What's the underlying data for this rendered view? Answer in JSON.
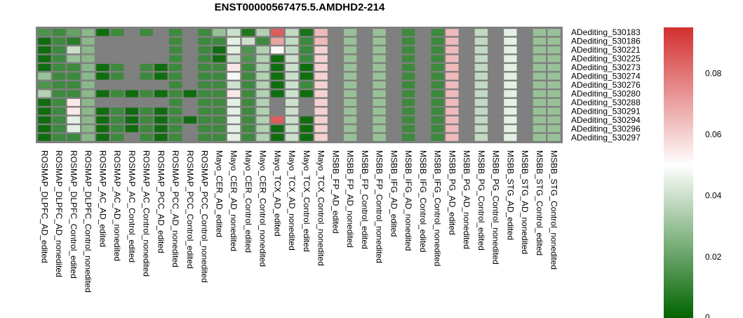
{
  "chart_data": {
    "type": "heatmap",
    "title": "ENST00000567475.5.AMDHD2-214",
    "columns": [
      "ROSMAP_DLPFC_AD_edited",
      "ROSMAP_DLPFC_AD_nonedited",
      "ROSMAP_DLPFC_Control_edited",
      "ROSMAP_DLPFC_Control_nonedited",
      "ROSMAP_AC_AD_edited",
      "ROSMAP_AC_AD_nonedited",
      "ROSMAP_AC_Control_edited",
      "ROSMAP_AC_Control_nonedited",
      "ROSMAP_PCC_AD_edited",
      "ROSMAP_PCC_AD_nonedited",
      "ROSMAP_PCC_Control_edited",
      "ROSMAP_PCC_Control_nonedited",
      "Mayo_CER_AD_edited",
      "Mayo_CER_AD_nonedited",
      "Mayo_CER_Control_edited",
      "Mayo_CER_Control_nonedited",
      "Mayo_TCX_AD_edited",
      "Mayo_TCX_AD_nonedited",
      "Mayo_TCX_Control_edited",
      "Mayo_TCX_Control_nonedited",
      "MSBB_FP_AD_edited",
      "MSBB_FP_AD_nonedited",
      "MSBB_FP_Control_edited",
      "MSBB_FP_Control_nonedited",
      "MSBB_IFG_AD_edited",
      "MSBB_IFG_AD_nonedited",
      "MSBB_IFG_Control_edited",
      "MSBB_IFG_Control_nonedited",
      "MSBB_PG_AD_edited",
      "MSBB_PG_AD_nonedited",
      "MSBB_PG_Control_edited",
      "MSBB_PG_Control_nonedited",
      "MSBB_STG_AD_edited",
      "MSBB_STG_AD_nonedited",
      "MSBB_STG_Control_edited",
      "MSBB_STG_Control_nonedited"
    ],
    "rows": [
      "ADediting_530183",
      "ADediting_530186",
      "ADediting_530221",
      "ADediting_530225",
      "ADediting_530273",
      "ADediting_530274",
      "ADediting_530276",
      "ADediting_530280",
      "ADediting_530288",
      "ADediting_530291",
      "ADediting_530294",
      "ADediting_530296",
      "ADediting_530297"
    ],
    "values": [
      [
        0.015,
        0.012,
        0.02,
        0.027,
        0.003,
        0.012,
        null,
        0.012,
        null,
        0.012,
        null,
        0.012,
        0.03,
        0.04,
        0.006,
        0.035,
        0.085,
        0.038,
        0.005,
        0.065,
        null,
        0.03,
        null,
        0.03,
        null,
        0.012,
        null,
        0.012,
        0.065,
        null,
        0.038,
        null,
        0.045,
        null,
        0.03,
        0.03
      ],
      [
        0.003,
        0.012,
        0.008,
        0.027,
        null,
        null,
        null,
        null,
        null,
        0.012,
        null,
        0.012,
        0.012,
        0.045,
        0.04,
        0.012,
        0.07,
        0.038,
        0.012,
        0.065,
        null,
        0.03,
        null,
        0.03,
        null,
        0.012,
        null,
        0.012,
        0.065,
        null,
        0.038,
        null,
        0.045,
        null,
        0.03,
        0.03
      ],
      [
        0.003,
        0.012,
        0.04,
        0.027,
        null,
        null,
        null,
        null,
        null,
        0.012,
        null,
        0.012,
        0.003,
        0.045,
        0.015,
        0.035,
        0.052,
        0.038,
        0.012,
        0.06,
        null,
        0.03,
        null,
        0.03,
        null,
        0.012,
        null,
        0.012,
        0.065,
        null,
        0.038,
        null,
        0.045,
        null,
        0.03,
        0.03
      ],
      [
        0.003,
        0.012,
        0.03,
        0.027,
        null,
        null,
        null,
        null,
        null,
        0.012,
        null,
        0.012,
        0.003,
        0.04,
        0.015,
        0.035,
        0.003,
        0.04,
        0.012,
        0.06,
        null,
        0.03,
        null,
        0.03,
        null,
        0.012,
        null,
        0.012,
        0.065,
        null,
        0.038,
        null,
        0.045,
        null,
        0.03,
        0.03
      ],
      [
        0.003,
        0.012,
        0.012,
        0.027,
        0.003,
        0.012,
        null,
        0.012,
        0.003,
        0.012,
        null,
        0.012,
        0.012,
        0.055,
        0.012,
        0.035,
        0.003,
        0.04,
        0.003,
        0.06,
        null,
        0.03,
        null,
        0.03,
        null,
        0.012,
        null,
        0.012,
        0.065,
        null,
        0.038,
        null,
        0.045,
        null,
        0.03,
        0.03
      ],
      [
        0.03,
        0.012,
        0.012,
        0.027,
        0.003,
        0.012,
        null,
        0.012,
        0.003,
        0.012,
        null,
        0.012,
        0.012,
        0.048,
        0.012,
        0.035,
        0.003,
        0.04,
        0.003,
        0.06,
        null,
        0.03,
        null,
        0.03,
        null,
        0.012,
        null,
        0.012,
        0.065,
        null,
        0.038,
        null,
        0.045,
        null,
        0.03,
        0.03
      ],
      [
        0.015,
        0.012,
        0.012,
        0.027,
        null,
        null,
        null,
        null,
        null,
        0.012,
        null,
        0.012,
        0.012,
        0.04,
        0.012,
        0.035,
        0.003,
        0.04,
        0.012,
        0.06,
        null,
        0.03,
        null,
        0.03,
        null,
        0.012,
        null,
        0.012,
        0.065,
        null,
        0.038,
        null,
        0.045,
        null,
        0.03,
        0.03
      ],
      [
        0.035,
        0.012,
        0.012,
        0.027,
        0.003,
        0.012,
        0.003,
        0.012,
        0.003,
        0.012,
        0.003,
        0.012,
        0.012,
        0.055,
        0.012,
        0.035,
        0.003,
        0.04,
        0.003,
        0.06,
        null,
        0.03,
        null,
        0.03,
        null,
        0.012,
        null,
        0.012,
        0.065,
        null,
        0.038,
        null,
        0.045,
        null,
        0.03,
        0.03
      ],
      [
        0.003,
        0.012,
        0.055,
        0.027,
        null,
        null,
        null,
        null,
        null,
        0.012,
        null,
        0.012,
        0.012,
        0.045,
        0.012,
        0.035,
        null,
        0.04,
        null,
        0.06,
        null,
        0.03,
        null,
        0.03,
        null,
        0.012,
        null,
        0.012,
        0.065,
        null,
        0.038,
        null,
        0.045,
        null,
        0.03,
        0.03
      ],
      [
        0.003,
        0.012,
        0.055,
        0.027,
        0.003,
        0.012,
        0.003,
        0.012,
        0.003,
        0.012,
        null,
        0.012,
        0.012,
        0.045,
        0.012,
        0.035,
        null,
        0.04,
        null,
        0.06,
        null,
        0.03,
        null,
        0.03,
        null,
        0.012,
        null,
        0.012,
        0.065,
        null,
        0.038,
        null,
        0.045,
        null,
        0.03,
        0.03
      ],
      [
        0.003,
        0.012,
        0.045,
        0.027,
        0.003,
        0.012,
        0.003,
        0.012,
        0.003,
        0.012,
        0.003,
        0.012,
        0.012,
        0.045,
        0.012,
        0.035,
        0.085,
        0.04,
        0.003,
        0.06,
        null,
        0.03,
        null,
        0.03,
        null,
        0.012,
        null,
        0.012,
        0.065,
        null,
        0.038,
        null,
        0.045,
        null,
        0.03,
        0.03
      ],
      [
        0.003,
        0.012,
        0.045,
        0.027,
        0.003,
        0.012,
        0.003,
        0.012,
        0.003,
        0.012,
        null,
        0.012,
        0.012,
        0.045,
        0.012,
        0.035,
        0.003,
        0.04,
        0.003,
        0.06,
        null,
        0.03,
        null,
        0.03,
        null,
        0.012,
        null,
        0.012,
        0.065,
        null,
        0.038,
        null,
        0.045,
        null,
        0.03,
        0.03
      ],
      [
        0.003,
        0.012,
        0.012,
        0.027,
        0.003,
        0.012,
        null,
        0.012,
        0.003,
        0.012,
        null,
        0.012,
        0.012,
        0.045,
        0.012,
        0.035,
        0.003,
        0.04,
        0.003,
        0.06,
        null,
        0.03,
        null,
        0.03,
        null,
        0.012,
        null,
        0.012,
        0.065,
        null,
        0.038,
        null,
        0.045,
        null,
        0.03,
        0.03
      ]
    ],
    "colorbar": {
      "range": [
        0,
        0.095
      ],
      "ticks": [
        0,
        0.02,
        0.04,
        0.06,
        0.08
      ],
      "tick_labels": [
        "0",
        "0.02",
        "0.04",
        "0.06",
        "0.08"
      ],
      "colors": {
        "low": "#006400",
        "mid": "#ffffff",
        "high": "#d32f2f",
        "mid_value": 0.05,
        "na": "#808080"
      }
    },
    "legend_placement": "right"
  }
}
